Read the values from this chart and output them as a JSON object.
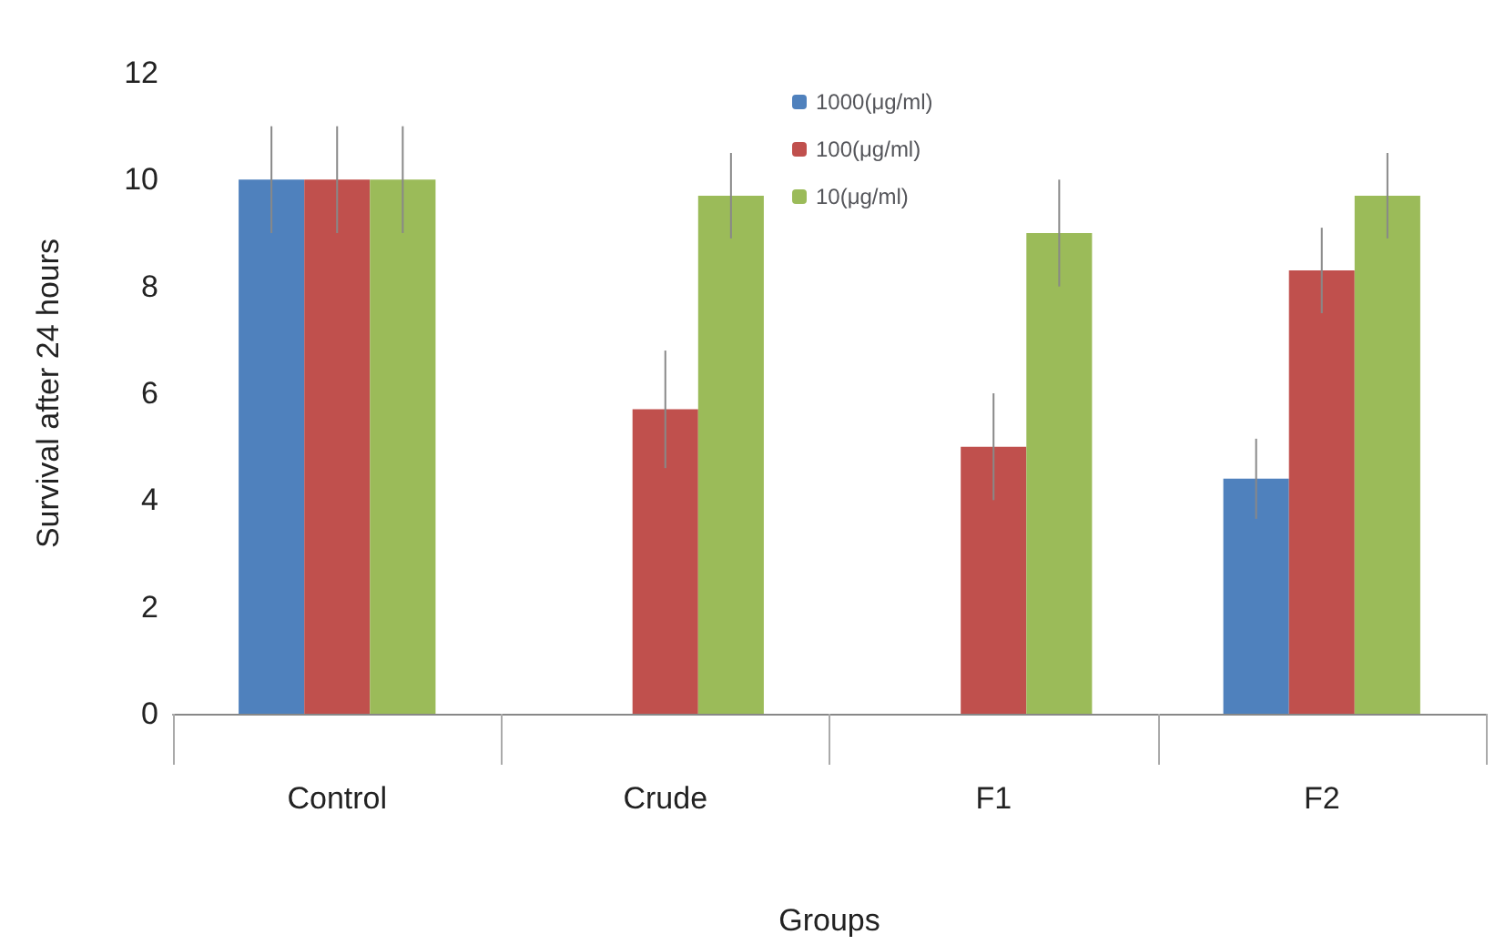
{
  "chart_data": {
    "type": "bar",
    "xlabel": "Groups",
    "ylabel": "Survival after 24 hours",
    "categories": [
      "Control",
      "Crude",
      "F1",
      "F2"
    ],
    "series": [
      {
        "name": "1000(μg/ml)",
        "color": "#4f81bd",
        "values": [
          10,
          null,
          null,
          4.4
        ],
        "errors": [
          1,
          null,
          null,
          0.75
        ]
      },
      {
        "name": "100(μg/ml)",
        "color": "#c0504d",
        "values": [
          10,
          5.7,
          5.0,
          8.3
        ],
        "errors": [
          1,
          1.1,
          1.0,
          0.8
        ]
      },
      {
        "name": "10(μg/ml)",
        "color": "#9bbb59",
        "values": [
          10,
          9.7,
          9.0,
          9.7
        ],
        "errors": [
          1,
          0.8,
          1.0,
          0.8
        ]
      }
    ],
    "ylim": [
      0,
      12
    ],
    "yticks": [
      0,
      2,
      4,
      6,
      8,
      10,
      12
    ],
    "grid": false,
    "legend": "top"
  }
}
